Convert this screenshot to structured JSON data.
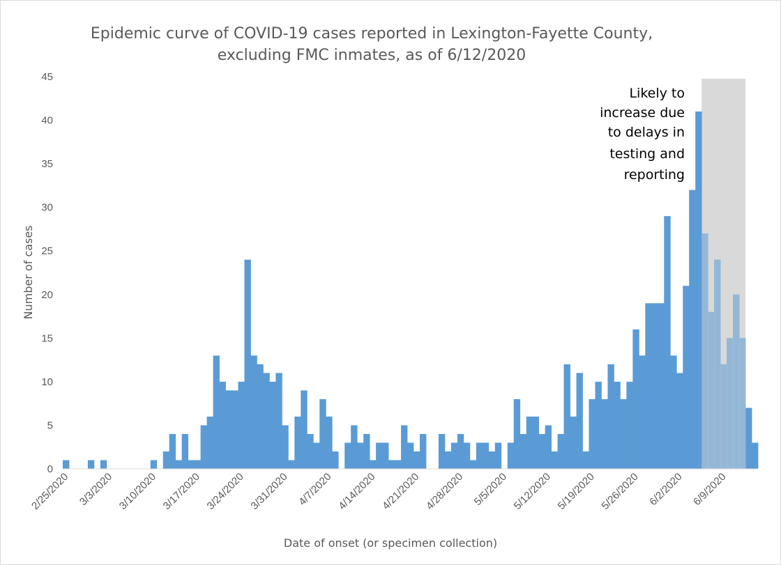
{
  "chart_data": {
    "type": "bar",
    "title": [
      "Epidemic curve of COVID-19 cases reported in Lexington-Fayette County,",
      "excluding FMC inmates, as of 6/12/2020"
    ],
    "xlabel": "Date of onset (or specimen collection)",
    "ylabel": "Number of cases",
    "ylim": [
      0,
      45
    ],
    "yticks": [
      0,
      5,
      10,
      15,
      20,
      25,
      30,
      35,
      40,
      45
    ],
    "x_start": "2020-02-25",
    "x_end": "2020-06-12",
    "xtick_labels": [
      "2/25/2020",
      "3/3/2020",
      "3/10/2020",
      "3/17/2020",
      "3/24/2020",
      "3/31/2020",
      "4/7/2020",
      "4/14/2020",
      "4/21/2020",
      "4/28/2020",
      "5/5/2020",
      "5/12/2020",
      "5/19/2020",
      "5/26/2020",
      "6/2/2020",
      "6/9/2020"
    ],
    "bar_color": "#5b9bd5",
    "shaded_region": {
      "start": "2020-06-06",
      "end": "2020-06-12",
      "color": "#d9d9d9",
      "annotation": [
        "Likely to",
        "increase due",
        "to delays in",
        "testing and",
        "reporting"
      ]
    },
    "values": [
      1,
      0,
      0,
      0,
      1,
      0,
      1,
      0,
      0,
      0,
      0,
      0,
      0,
      0,
      1,
      0,
      2,
      4,
      1,
      4,
      1,
      1,
      5,
      6,
      13,
      10,
      9,
      9,
      10,
      24,
      13,
      12,
      11,
      10,
      11,
      5,
      1,
      6,
      9,
      4,
      3,
      8,
      6,
      2,
      0,
      3,
      5,
      3,
      4,
      1,
      3,
      3,
      1,
      1,
      5,
      3,
      2,
      4,
      0,
      0,
      4,
      2,
      3,
      4,
      3,
      1,
      3,
      3,
      2,
      3,
      0,
      3,
      8,
      4,
      6,
      6,
      4,
      5,
      2,
      4,
      12,
      6,
      11,
      2,
      8,
      10,
      8,
      12,
      10,
      8,
      10,
      16,
      13,
      19,
      19,
      19,
      29,
      13,
      11,
      21,
      32,
      41,
      27,
      18,
      24,
      12,
      15,
      20,
      15,
      7,
      3
    ]
  }
}
